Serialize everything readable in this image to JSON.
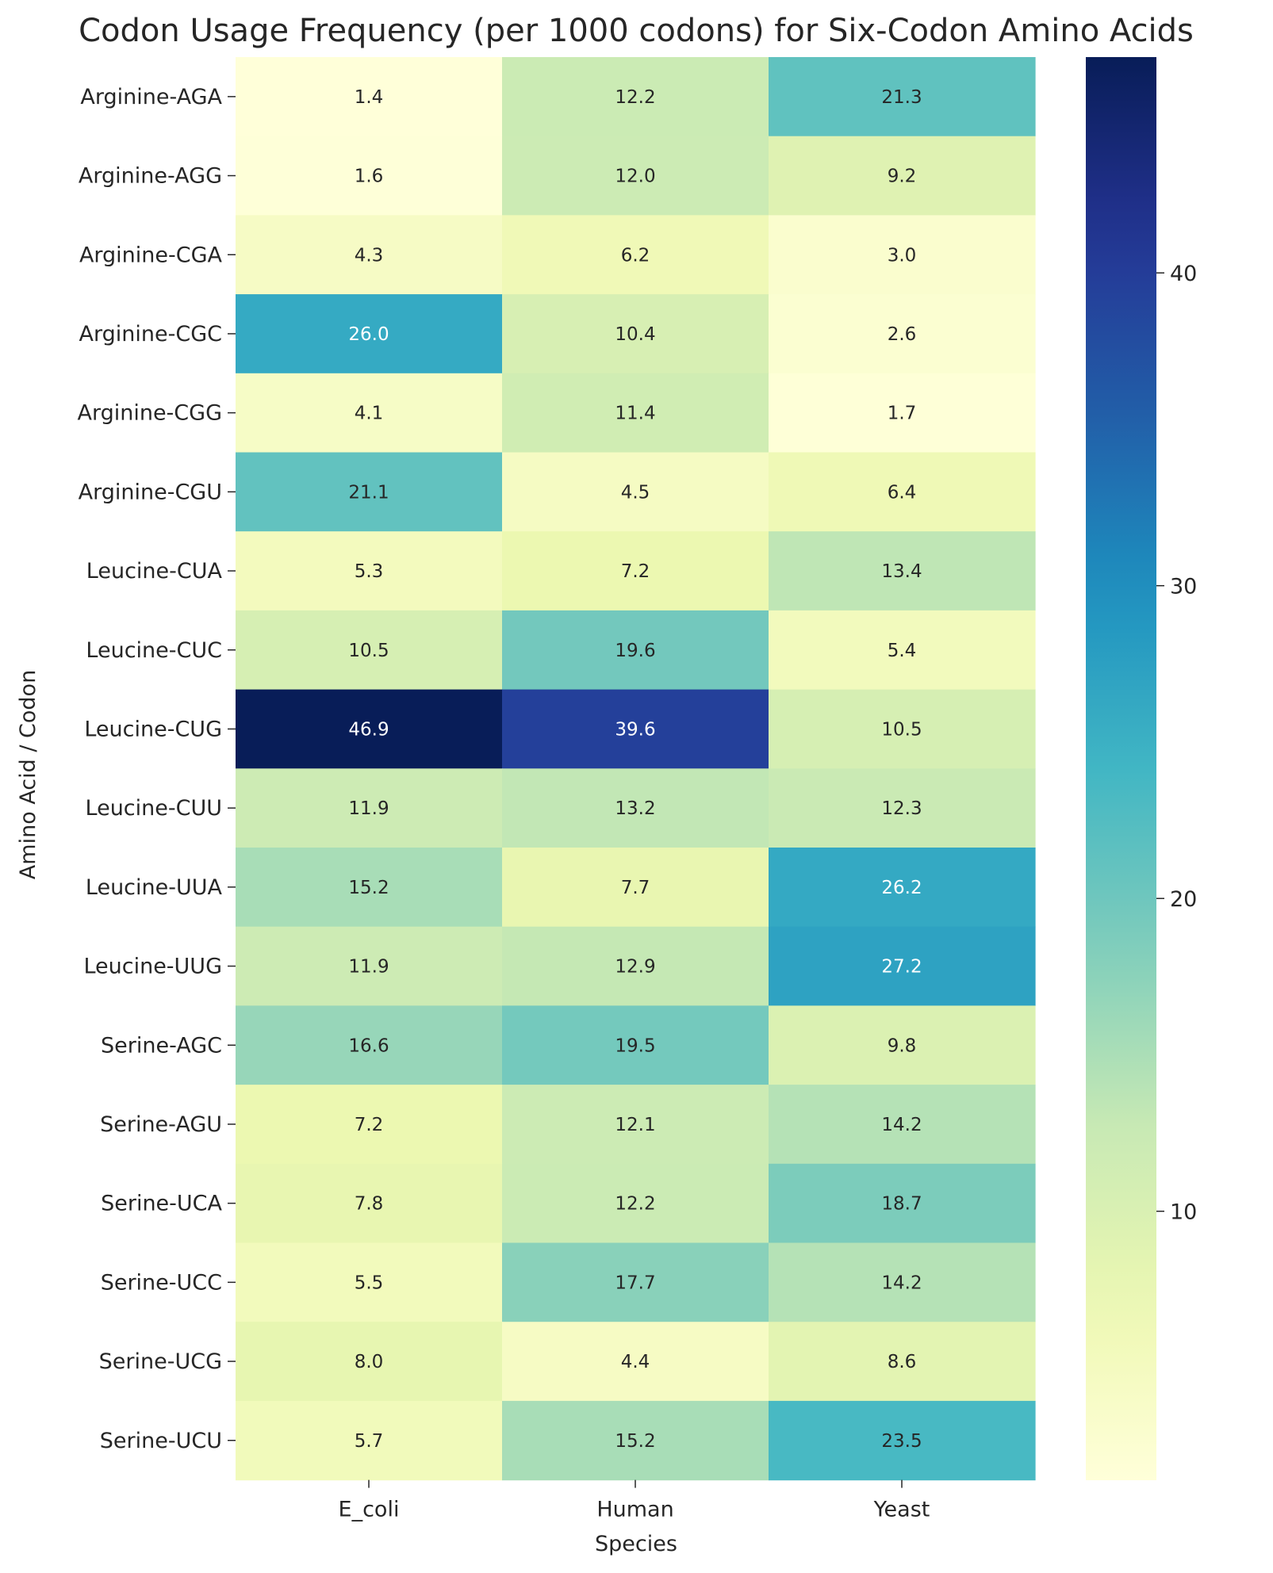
{
  "chart_data": {
    "type": "heatmap",
    "title": "Codon Usage Frequency (per 1000 codons) for Six-Codon Amino Acids",
    "xlabel": "Species",
    "ylabel": "Amino Acid / Codon",
    "columns": [
      "E_coli",
      "Human",
      "Yeast"
    ],
    "rows": [
      "Arginine-AGA",
      "Arginine-AGG",
      "Arginine-CGA",
      "Arginine-CGC",
      "Arginine-CGG",
      "Arginine-CGU",
      "Leucine-CUA",
      "Leucine-CUC",
      "Leucine-CUG",
      "Leucine-CUU",
      "Leucine-UUA",
      "Leucine-UUG",
      "Serine-AGC",
      "Serine-AGU",
      "Serine-UCA",
      "Serine-UCC",
      "Serine-UCG",
      "Serine-UCU"
    ],
    "values": [
      [
        1.4,
        12.2,
        21.3
      ],
      [
        1.6,
        12.0,
        9.2
      ],
      [
        4.3,
        6.2,
        3.0
      ],
      [
        26.0,
        10.4,
        2.6
      ],
      [
        4.1,
        11.4,
        1.7
      ],
      [
        21.1,
        4.5,
        6.4
      ],
      [
        5.3,
        7.2,
        13.4
      ],
      [
        10.5,
        19.6,
        5.4
      ],
      [
        46.9,
        39.6,
        10.5
      ],
      [
        11.9,
        13.2,
        12.3
      ],
      [
        15.2,
        7.7,
        26.2
      ],
      [
        11.9,
        12.9,
        27.2
      ],
      [
        16.6,
        19.5,
        9.8
      ],
      [
        7.2,
        12.1,
        14.2
      ],
      [
        7.8,
        12.2,
        18.7
      ],
      [
        5.5,
        17.7,
        14.2
      ],
      [
        8.0,
        4.4,
        8.6
      ],
      [
        5.7,
        15.2,
        23.5
      ]
    ],
    "colormap": "YlGnBu",
    "vmin": 1.4,
    "vmax": 46.9,
    "colorbar_ticks": [
      10,
      20,
      30,
      40
    ]
  }
}
